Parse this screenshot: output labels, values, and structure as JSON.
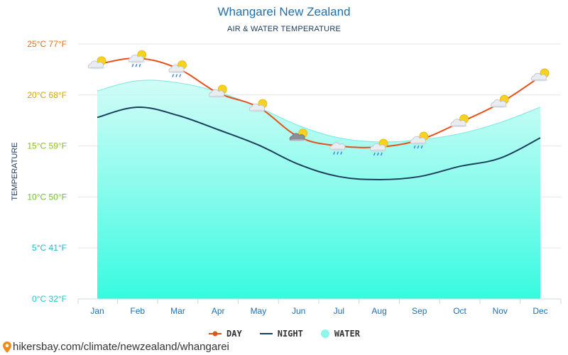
{
  "title": "Whangarei New Zealand",
  "subtitle": "AIR & WATER TEMPERATURE",
  "footer": {
    "url": "hikersbay.com/climate/newzealand/whangarei",
    "icon": "map-pin-icon"
  },
  "legend": [
    {
      "label": "DAY",
      "color": "#e8501a"
    },
    {
      "label": "NIGHT",
      "color": "#1b3f5c"
    },
    {
      "label": "WATER",
      "color": "#8ef5ea"
    }
  ],
  "chart_data": {
    "type": "line",
    "title": "Whangarei New Zealand",
    "subtitle": "AIR & WATER TEMPERATURE",
    "ylabel": "TEMPERATURE",
    "xlabel": "",
    "categories": [
      "Jan",
      "Feb",
      "Mar",
      "Apr",
      "May",
      "Jun",
      "Jul",
      "Aug",
      "Sep",
      "Oct",
      "Nov",
      "Dec"
    ],
    "ylim": [
      0,
      25
    ],
    "yticks": [
      {
        "value": 0,
        "label": "0°C 32°F",
        "color": "#1fc9c9"
      },
      {
        "value": 5,
        "label": "5°C 41°F",
        "color": "#25b9c8"
      },
      {
        "value": 10,
        "label": "10°C 50°F",
        "color": "#6fbf2e"
      },
      {
        "value": 15,
        "label": "15°C 59°F",
        "color": "#8cc021"
      },
      {
        "value": 20,
        "label": "20°C 68°F",
        "color": "#d9a400"
      },
      {
        "value": 25,
        "label": "25°C 77°F",
        "color": "#e8701a"
      }
    ],
    "grid": true,
    "legend_position": "bottom",
    "series": [
      {
        "name": "DAY",
        "type": "line",
        "color": "#e8501a",
        "values": [
          23.0,
          23.6,
          22.6,
          20.2,
          18.8,
          15.9,
          15.0,
          14.9,
          15.6,
          17.3,
          19.2,
          21.8
        ]
      },
      {
        "name": "NIGHT",
        "type": "line",
        "color": "#1b3f5c",
        "values": [
          17.8,
          18.8,
          18.0,
          16.6,
          15.1,
          13.2,
          12.0,
          11.7,
          12.0,
          13.0,
          13.8,
          15.8
        ]
      },
      {
        "name": "WATER",
        "type": "area",
        "color": "#8ef5ea",
        "values": [
          20.4,
          21.4,
          21.2,
          20.3,
          18.8,
          17.0,
          15.8,
          15.4,
          15.6,
          16.2,
          17.3,
          18.8
        ]
      }
    ],
    "weather_icons": [
      "sun-cloud-icon",
      "sun-cloud-rain-icon",
      "sun-cloud-rain-icon",
      "sun-cloud-icon",
      "sun-cloud-icon",
      "sun-dark-cloud-icon",
      "cloud-rain-icon",
      "sun-cloud-rain-icon",
      "sun-cloud-rain-icon",
      "sun-cloud-icon",
      "sun-cloud-icon",
      "sun-cloud-icon"
    ]
  }
}
